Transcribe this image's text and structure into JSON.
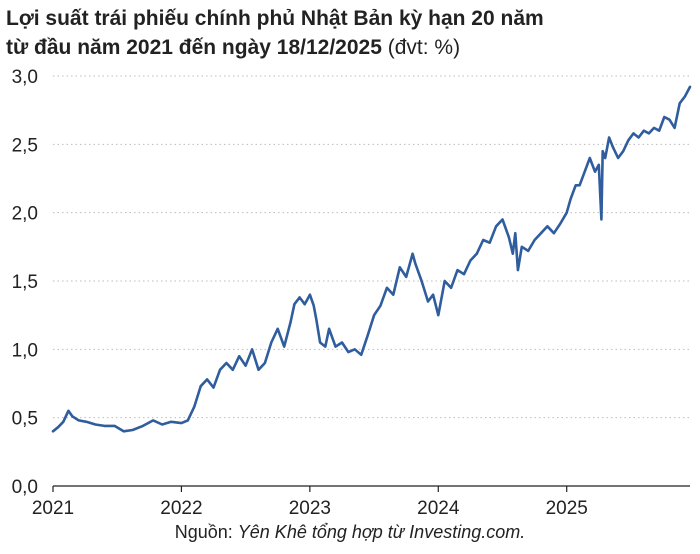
{
  "title": {
    "line1": "Lợi suất trái phiếu chính phủ Nhật Bản kỳ hạn 20 năm",
    "line2": "từ đầu năm 2021 đến ngày 18/12/2025",
    "unit": "(đvt: %)"
  },
  "source": {
    "prefix": "Nguồn: ",
    "text": "Yên Khê tổng hợp từ Investing.com."
  },
  "chart_data": {
    "type": "line",
    "title": "Lợi suất trái phiếu chính phủ Nhật Bản kỳ hạn 20 năm từ đầu năm 2021 đến ngày 18/12/2025 (đvt: %)",
    "xlabel": "",
    "ylabel": "",
    "xlim": [
      2021.0,
      2025.96
    ],
    "ylim": [
      0,
      3.0
    ],
    "x_ticks": [
      2021,
      2022,
      2023,
      2024,
      2025
    ],
    "x_tick_labels": [
      "2021",
      "2022",
      "2023",
      "2024",
      "2025"
    ],
    "y_ticks": [
      0,
      0.5,
      1.0,
      1.5,
      2.0,
      2.5,
      3.0
    ],
    "y_tick_labels": [
      "0,0",
      "0,5",
      "1,0",
      "1,5",
      "2,0",
      "2,5",
      "3,0"
    ],
    "grid": "horizontal-dotted",
    "line_color": "#2f5d9e",
    "series": [
      {
        "x": [
          2021.0,
          2021.04,
          2021.08,
          2021.12,
          2021.15,
          2021.2,
          2021.26,
          2021.33,
          2021.4,
          2021.48,
          2021.55,
          2021.62,
          2021.7,
          2021.78,
          2021.85,
          2021.92,
          2022.0,
          2022.05,
          2022.1,
          2022.15,
          2022.2,
          2022.25,
          2022.3,
          2022.35,
          2022.4,
          2022.45,
          2022.5,
          2022.55,
          2022.6,
          2022.65,
          2022.7,
          2022.75,
          2022.8,
          2022.85,
          2022.88,
          2022.92,
          2022.96,
          2023.0,
          2023.03,
          2023.05,
          2023.08,
          2023.12,
          2023.15,
          2023.2,
          2023.25,
          2023.3,
          2023.35,
          2023.4,
          2023.45,
          2023.5,
          2023.55,
          2023.6,
          2023.65,
          2023.7,
          2023.75,
          2023.8,
          2023.82,
          2023.87,
          2023.92,
          2023.96,
          2024.0,
          2024.05,
          2024.1,
          2024.15,
          2024.2,
          2024.25,
          2024.3,
          2024.35,
          2024.4,
          2024.45,
          2024.5,
          2024.55,
          2024.58,
          2024.6,
          2024.62,
          2024.65,
          2024.7,
          2024.75,
          2024.8,
          2024.85,
          2024.9,
          2024.95,
          2025.0,
          2025.03,
          2025.07,
          2025.1,
          2025.14,
          2025.18,
          2025.22,
          2025.25,
          2025.27,
          2025.28,
          2025.3,
          2025.33,
          2025.36,
          2025.4,
          2025.44,
          2025.48,
          2025.52,
          2025.56,
          2025.6,
          2025.64,
          2025.68,
          2025.72,
          2025.76,
          2025.8,
          2025.84,
          2025.88,
          2025.92,
          2025.96
        ],
        "y": [
          0.4,
          0.43,
          0.47,
          0.55,
          0.51,
          0.48,
          0.47,
          0.45,
          0.44,
          0.44,
          0.4,
          0.41,
          0.44,
          0.48,
          0.45,
          0.47,
          0.46,
          0.48,
          0.58,
          0.73,
          0.78,
          0.72,
          0.85,
          0.9,
          0.85,
          0.95,
          0.88,
          1.0,
          0.85,
          0.9,
          1.05,
          1.15,
          1.02,
          1.2,
          1.33,
          1.38,
          1.33,
          1.4,
          1.32,
          1.22,
          1.05,
          1.02,
          1.15,
          1.02,
          1.05,
          0.98,
          1.0,
          0.96,
          1.1,
          1.25,
          1.32,
          1.45,
          1.4,
          1.6,
          1.53,
          1.7,
          1.63,
          1.5,
          1.35,
          1.4,
          1.25,
          1.5,
          1.45,
          1.58,
          1.55,
          1.65,
          1.7,
          1.8,
          1.78,
          1.9,
          1.95,
          1.82,
          1.7,
          1.85,
          1.58,
          1.75,
          1.72,
          1.8,
          1.85,
          1.9,
          1.85,
          1.92,
          2.0,
          2.1,
          2.2,
          2.2,
          2.3,
          2.4,
          2.3,
          2.35,
          1.95,
          2.45,
          2.4,
          2.55,
          2.48,
          2.4,
          2.45,
          2.53,
          2.58,
          2.55,
          2.6,
          2.58,
          2.62,
          2.6,
          2.7,
          2.68,
          2.62,
          2.8,
          2.85,
          2.92
        ]
      }
    ]
  }
}
